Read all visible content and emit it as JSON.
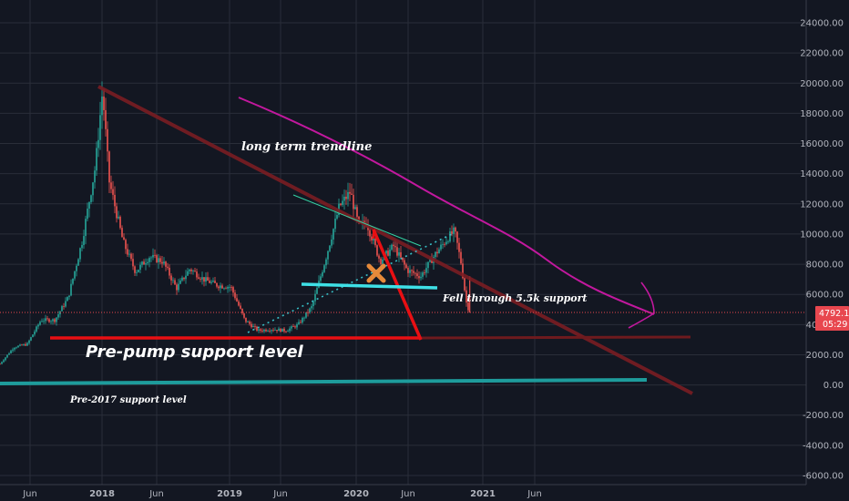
{
  "colors": {
    "background": "#131722",
    "grid": "#2a2e39",
    "axis_text": "#b2b5be",
    "candle_up": "#26a69a",
    "candle_down": "#ef5350",
    "long_trendline": "#7a1d22",
    "magenta_curve": "#c2189e",
    "cyan_line": "#3ee0e6",
    "support_red": "#e80f13",
    "pre2017_support": "#1e9c9c",
    "price_badge": "#e8474f",
    "cross_marker": "#e68a3a"
  },
  "axes": {
    "y_ticks": [
      "24000.00",
      "22000.00",
      "20000.00",
      "18000.00",
      "16000.00",
      "14000.00",
      "12000.00",
      "10000.00",
      "8000.00",
      "6000.00",
      "4000.00",
      "2000.00",
      "0.00",
      "-2000.00",
      "-4000.00",
      "-6000.00"
    ],
    "x_ticks": [
      {
        "label": "Jun",
        "bold": false
      },
      {
        "label": "2018",
        "bold": true
      },
      {
        "label": "Jun",
        "bold": false
      },
      {
        "label": "2019",
        "bold": true
      },
      {
        "label": "Jun",
        "bold": false
      },
      {
        "label": "2020",
        "bold": true
      },
      {
        "label": "Jun",
        "bold": false
      },
      {
        "label": "2021",
        "bold": true
      },
      {
        "label": "Jun",
        "bold": false
      }
    ]
  },
  "price_badge": {
    "price": "4792.16",
    "countdown": "05:29"
  },
  "annotations": {
    "long_term": "long term trendline",
    "fell_through": "Fell through 5.5k support",
    "pre_pump": "Pre-pump support level",
    "pre_2017": "Pre-2017 support level"
  },
  "chart_data": {
    "type": "line",
    "title": "",
    "xlabel": "",
    "ylabel": "",
    "ylim": [
      -6000,
      24000
    ],
    "xlim": [
      "2017-05",
      "2021-09"
    ],
    "grid": true,
    "series": [
      {
        "name": "",
        "x": [
          "2017-05-01",
          "2017-06-01",
          "2017-07-01",
          "2017-08-01",
          "2017-09-01",
          "2017-10-01",
          "2017-11-01",
          "2017-12-01",
          "2017-12-17",
          "2018-01-01",
          "2018-02-01",
          "2018-03-01",
          "2018-04-01",
          "2018-05-01",
          "2018-06-01",
          "2018-07-01",
          "2018-08-01",
          "2018-09-01",
          "2018-10-01",
          "2018-11-01",
          "2018-12-01",
          "2019-01-01",
          "2019-02-01",
          "2019-03-01",
          "2019-04-01",
          "2019-05-01",
          "2019-06-01",
          "2019-06-26",
          "2019-07-15",
          "2019-08-01",
          "2019-09-01",
          "2019-10-01",
          "2019-11-01",
          "2019-12-01",
          "2020-01-01",
          "2020-02-01",
          "2020-02-15",
          "2020-03-01",
          "2020-03-12",
          "2020-03-20"
        ],
        "y": [
          1400,
          2500,
          2700,
          4300,
          4300,
          5800,
          9500,
          14500,
          19500,
          13500,
          9500,
          7500,
          8500,
          8200,
          6400,
          7700,
          7000,
          6600,
          6500,
          4300,
          3600,
          3700,
          3600,
          4000,
          5200,
          8300,
          11800,
          12800,
          10500,
          10800,
          8200,
          9200,
          7600,
          7200,
          8600,
          9800,
          10200,
          8000,
          5500,
          4792
        ]
      }
    ],
    "drawings": {
      "long_term_trendline": {
        "from": [
          "2017-12-17",
          20000
        ],
        "to": [
          "2021-09-01",
          -600
        ]
      },
      "magenta_curve": {
        "from": [
          "2019-01-01",
          19000
        ],
        "to": [
          "2021-06-15",
          4600
        ]
      },
      "red_support_line": {
        "value": 3100,
        "from": "2017-07-01",
        "to": "2020-06-15"
      },
      "pre_2017_support": {
        "value": 150,
        "from": "2017-05-01",
        "to": "2021-08-01"
      },
      "cyan_support": {
        "from": [
          "2019-06-01",
          6600
        ],
        "to": [
          "2020-06-01",
          6300
        ]
      }
    }
  }
}
